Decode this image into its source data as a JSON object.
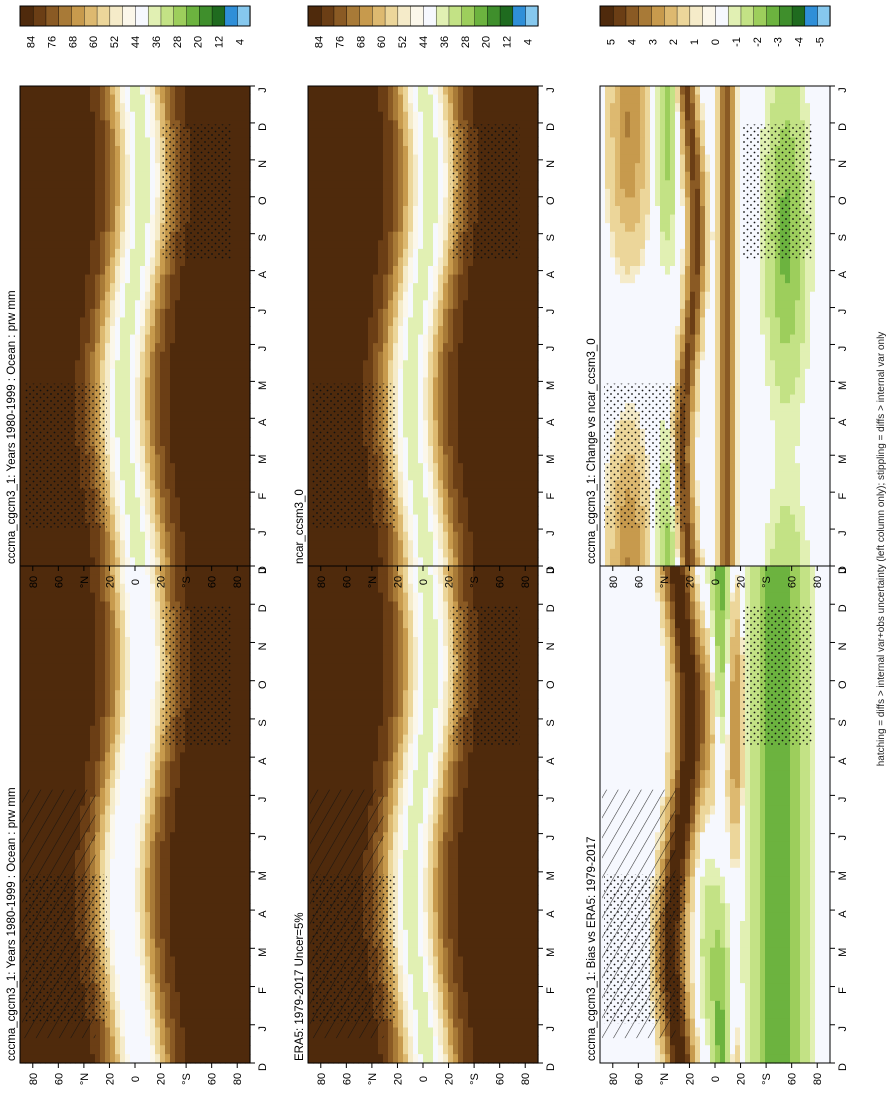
{
  "footnote": "hatching = diffs > internal var+obs uncertainty (left column only); stippling = diffs > internal var only",
  "month_ticks": [
    "D",
    "J",
    "F",
    "M",
    "A",
    "M",
    "J",
    "J",
    "A",
    "S",
    "O",
    "N",
    "D",
    "J"
  ],
  "lat_ticks": [
    "80",
    "60",
    "°N",
    "20",
    "0",
    "20",
    "°S",
    "60",
    "80"
  ],
  "palettes": {
    "pw": [
      "#4f2a0c",
      "#6b3e15",
      "#8a5a24",
      "#a87a37",
      "#c79a4d",
      "#ddb970",
      "#ecd69a",
      "#f5ebc9",
      "#fbf7ea",
      "#f6f8fe",
      "#e1f0b3",
      "#c3e285",
      "#9dce5c",
      "#6cb33f",
      "#3f8f2c",
      "#1f6b1f",
      "#2f8fd8",
      "#86c8ee"
    ],
    "diff": [
      "#4f2a0c",
      "#6b3e15",
      "#8a5a24",
      "#a87a37",
      "#c79a4d",
      "#ddb970",
      "#ecd69a",
      "#f5ebc9",
      "#fbf7ea",
      "#f6f8fe",
      "#e1f0b3",
      "#c3e285",
      "#9dce5c",
      "#6cb33f",
      "#3f8f2c",
      "#1f6b1f",
      "#2f8fd8",
      "#86c8ee"
    ]
  },
  "chart_data": [
    {
      "type": "heatmap",
      "title": "cccma_cgcm3_1: Years 1980-1999 : Ocean : prw mm",
      "x_axis": "month",
      "y_axis": "latitude",
      "x": [
        "D",
        "J",
        "F",
        "M",
        "A",
        "M",
        "J",
        "J",
        "A",
        "S",
        "O",
        "N",
        "D",
        "J"
      ],
      "y": [
        "80",
        "60",
        "°N",
        "20",
        "0",
        "20",
        "°S",
        "60",
        "80"
      ],
      "colorbar_labels": [
        "84",
        "76",
        "68",
        "60",
        "52",
        "44",
        "36",
        "28",
        "20",
        "12",
        "4"
      ],
      "kind": "abs",
      "peak_shift": 0,
      "green_peak": false,
      "hatching": true,
      "stippling": true
    },
    {
      "type": "heatmap",
      "title": "ERA5: 1979-2017 Uncer=5%",
      "x_axis": "month",
      "y_axis": "latitude",
      "x": [
        "D",
        "J",
        "F",
        "M",
        "A",
        "M",
        "J",
        "J",
        "A",
        "S",
        "O",
        "N",
        "D",
        "J"
      ],
      "y": [
        "80",
        "60",
        "°N",
        "20",
        "0",
        "20",
        "°S",
        "60",
        "80"
      ],
      "colorbar_labels": [
        "84",
        "76",
        "68",
        "60",
        "52",
        "44",
        "36",
        "28",
        "20",
        "12",
        "4"
      ],
      "kind": "abs",
      "peak_shift": 0,
      "green_peak": true,
      "hatching": true,
      "stippling": true
    },
    {
      "type": "heatmap",
      "title": "cccma_cgcm3_1: Bias vs ERA5: 1979-2017",
      "x_axis": "month",
      "y_axis": "latitude",
      "x": [
        "D",
        "J",
        "F",
        "M",
        "A",
        "M",
        "J",
        "J",
        "A",
        "S",
        "O",
        "N",
        "D",
        "J"
      ],
      "y": [
        "80",
        "60",
        "°N",
        "20",
        "0",
        "20",
        "°S",
        "60",
        "80"
      ],
      "colorbar_labels": [
        "5",
        "4",
        "3",
        "2",
        "1",
        "0",
        "-1",
        "-2",
        "-3",
        "-4",
        "-5"
      ],
      "kind": "diff",
      "hatching": true,
      "stippling": true
    },
    {
      "type": "heatmap",
      "title": "cccma_cgcm3_1: Years 1980-1999 : Ocean : prw mm",
      "x_axis": "month",
      "y_axis": "latitude",
      "x": [
        "D",
        "J",
        "F",
        "M",
        "A",
        "M",
        "J",
        "J",
        "A",
        "S",
        "O",
        "N",
        "D",
        "J"
      ],
      "y": [
        "80",
        "60",
        "°N",
        "20",
        "0",
        "20",
        "°S",
        "60",
        "80"
      ],
      "colorbar_labels": [
        "84",
        "76",
        "68",
        "60",
        "52",
        "44",
        "36",
        "28",
        "20",
        "12",
        "4"
      ],
      "kind": "abs",
      "peak_shift": 0,
      "green_peak": true,
      "hatching": false,
      "stippling": true
    },
    {
      "type": "heatmap",
      "title": "ncar_ccsm3_0",
      "x_axis": "month",
      "y_axis": "latitude",
      "x": [
        "D",
        "J",
        "F",
        "M",
        "A",
        "M",
        "J",
        "J",
        "A",
        "S",
        "O",
        "N",
        "D",
        "J"
      ],
      "y": [
        "80",
        "60",
        "°N",
        "20",
        "0",
        "20",
        "°S",
        "60",
        "80"
      ],
      "colorbar_labels": [
        "84",
        "76",
        "68",
        "60",
        "52",
        "44",
        "36",
        "28",
        "20",
        "12",
        "4"
      ],
      "kind": "abs",
      "peak_shift": 0,
      "green_peak": true,
      "hatching": false,
      "stippling": true
    },
    {
      "type": "heatmap",
      "title": "cccma_cgcm3_1: Change vs ncar_ccsm3_0",
      "x_axis": "month",
      "y_axis": "latitude",
      "x": [
        "D",
        "J",
        "F",
        "M",
        "A",
        "M",
        "J",
        "J",
        "A",
        "S",
        "O",
        "N",
        "D",
        "J"
      ],
      "y": [
        "80",
        "60",
        "°N",
        "20",
        "0",
        "20",
        "°S",
        "60",
        "80"
      ],
      "colorbar_labels": [
        "5",
        "4",
        "3",
        "2",
        "1",
        "0",
        "-1",
        "-2",
        "-3",
        "-4",
        "-5"
      ],
      "kind": "diff2",
      "hatching": false,
      "stippling": true
    }
  ]
}
